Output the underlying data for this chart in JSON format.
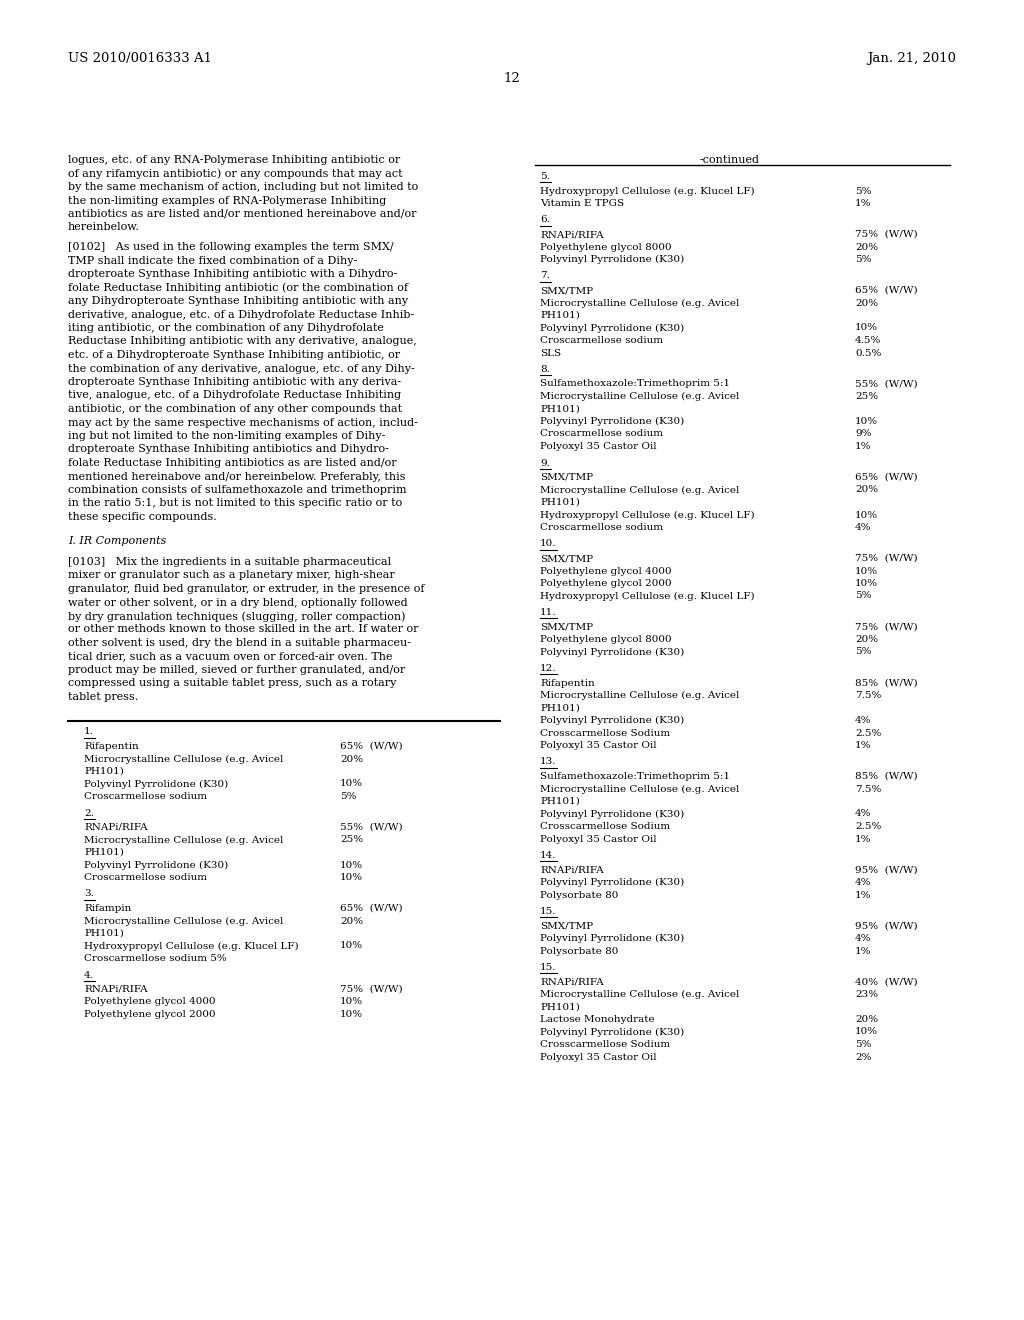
{
  "bg_color": "#ffffff",
  "header_left": "US 2010/0016333 A1",
  "header_right": "Jan. 21, 2010",
  "page_number": "12",
  "left_para1": [
    "logues, etc. of any RNA-Polymerase Inhibiting antibiotic or",
    "of any rifamycin antibiotic) or any compounds that may act",
    "by the same mechanism of action, including but not limited to",
    "the non-limiting examples of RNA-Polymerase Inhibiting",
    "antibiotics as are listed and/or mentioned hereinabove and/or",
    "hereinbelow."
  ],
  "left_para2_bold": "[0102]",
  "left_para2": [
    "[0102]   As used in the following examples the term SMX/",
    "TMP shall indicate the fixed combination of a Dihy-",
    "dropteroate Synthase Inhibiting antibiotic with a Dihydro-",
    "folate Reductase Inhibiting antibiotic (or the combination of",
    "any Dihydropteroate Synthase Inhibiting antibiotic with any",
    "derivative, analogue, etc. of a Dihydrofolate Reductase Inhib-",
    "iting antibiotic, or the combination of any Dihydrofolate",
    "Reductase Inhibiting antibiotic with any derivative, analogue,",
    "etc. of a Dihydropteroate Synthase Inhibiting antibiotic, or",
    "the combination of any derivative, analogue, etc. of any Dihy-",
    "dropteroate Synthase Inhibiting antibiotic with any deriva-",
    "tive, analogue, etc. of a Dihydrofolate Reductase Inhibiting",
    "antibiotic, or the combination of any other compounds that",
    "may act by the same respective mechanisms of action, includ-",
    "ing but not limited to the non-limiting examples of Dihy-",
    "dropteroate Synthase Inhibiting antibiotics and Dihydro-",
    "folate Reductase Inhibiting antibiotics as are listed and/or",
    "mentioned hereinabove and/or hereinbelow. Preferably, this",
    "combination consists of sulfamethoxazole and trimethoprim",
    "in the ratio 5:1, but is not limited to this specific ratio or to",
    "these specific compounds."
  ],
  "left_section_head": "I. IR Components",
  "left_para3": [
    "[0103]   Mix the ingredients in a suitable pharmaceutical",
    "mixer or granulator such as a planetary mixer, high-shear",
    "granulator, fluid bed granulator, or extruder, in the presence of",
    "water or other solvent, or in a dry blend, optionally followed",
    "by dry granulation techniques (slugging, roller compaction)",
    "or other methods known to those skilled in the art. If water or",
    "other solvent is used, dry the blend in a suitable pharmaceu-",
    "tical drier, such as a vacuum oven or forced-air oven. The",
    "product may be milled, sieved or further granulated, and/or",
    "compressed using a suitable tablet press, such as a rotary",
    "tablet press."
  ],
  "right_sections": [
    {
      "number": "5.",
      "items": [
        {
          "name": "Hydroxypropyl Cellulose (e.g. Klucel LF)",
          "value": "5%",
          "wrap": false
        },
        {
          "name": "Vitamin E TPGS",
          "value": "1%",
          "wrap": false
        }
      ]
    },
    {
      "number": "6.",
      "items": [
        {
          "name": "RNAPi/RIFA",
          "value": "75%  (W/W)",
          "wrap": false
        },
        {
          "name": "Polyethylene glycol 8000",
          "value": "20%",
          "wrap": false
        },
        {
          "name": "Polyvinyl Pyrrolidone (K30)",
          "value": "5%",
          "wrap": false
        }
      ]
    },
    {
      "number": "7.",
      "items": [
        {
          "name": "SMX/TMP",
          "value": "65%  (W/W)",
          "wrap": false
        },
        {
          "name": "Microcrystalline Cellulose (e.g. Avicel",
          "value": "20%",
          "wrap": true,
          "wrap2": "PH101)"
        },
        {
          "name": "Polyvinyl Pyrrolidone (K30)",
          "value": "10%",
          "wrap": false
        },
        {
          "name": "Croscarmellose sodium",
          "value": "4.5%",
          "wrap": false
        },
        {
          "name": "SLS",
          "value": "0.5%",
          "wrap": false
        }
      ]
    },
    {
      "number": "8.",
      "items": [
        {
          "name": "Sulfamethoxazole:Trimethoprim 5:1",
          "value": "55%  (W/W)",
          "wrap": false
        },
        {
          "name": "Microcrystalline Cellulose (e.g. Avicel",
          "value": "25%",
          "wrap": true,
          "wrap2": "PH101)"
        },
        {
          "name": "Polyvinyl Pyrrolidone (K30)",
          "value": "10%",
          "wrap": false
        },
        {
          "name": "Croscarmellose sodium",
          "value": "9%",
          "wrap": false
        },
        {
          "name": "Polyoxyl 35 Castor Oil",
          "value": "1%",
          "wrap": false
        }
      ]
    },
    {
      "number": "9.",
      "items": [
        {
          "name": "SMX/TMP",
          "value": "65%  (W/W)",
          "wrap": false
        },
        {
          "name": "Microcrystalline Cellulose (e.g. Avicel",
          "value": "20%",
          "wrap": true,
          "wrap2": "PH101)"
        },
        {
          "name": "Hydroxypropyl Cellulose (e.g. Klucel LF)",
          "value": "10%",
          "wrap": false
        },
        {
          "name": "Croscarmellose sodium",
          "value": "4%",
          "wrap": false
        }
      ]
    },
    {
      "number": "10.",
      "items": [
        {
          "name": "SMX/TMP",
          "value": "75%  (W/W)",
          "wrap": false
        },
        {
          "name": "Polyethylene glycol 4000",
          "value": "10%",
          "wrap": false
        },
        {
          "name": "Polyethylene glycol 2000",
          "value": "10%",
          "wrap": false
        },
        {
          "name": "Hydroxypropyl Cellulose (e.g. Klucel LF)",
          "value": "5%",
          "wrap": false
        }
      ]
    },
    {
      "number": "11.",
      "items": [
        {
          "name": "SMX/TMP",
          "value": "75%  (W/W)",
          "wrap": false
        },
        {
          "name": "Polyethylene glycol 8000",
          "value": "20%",
          "wrap": false
        },
        {
          "name": "Polyvinyl Pyrrolidone (K30)",
          "value": "5%",
          "wrap": false
        }
      ]
    },
    {
      "number": "12.",
      "items": [
        {
          "name": "Rifapentin",
          "value": "85%  (W/W)",
          "wrap": false
        },
        {
          "name": "Microcrystalline Cellulose (e.g. Avicel",
          "value": "7.5%",
          "wrap": true,
          "wrap2": "PH101)"
        },
        {
          "name": "Polyvinyl Pyrrolidone (K30)",
          "value": "4%",
          "wrap": false
        },
        {
          "name": "Crosscarmellose Sodium",
          "value": "2.5%",
          "wrap": false
        },
        {
          "name": "Polyoxyl 35 Castor Oil",
          "value": "1%",
          "wrap": false
        }
      ]
    },
    {
      "number": "13.",
      "items": [
        {
          "name": "Sulfamethoxazole:Trimethoprim 5:1",
          "value": "85%  (W/W)",
          "wrap": false
        },
        {
          "name": "Microcrystalline Cellulose (e.g. Avicel",
          "value": "7.5%",
          "wrap": true,
          "wrap2": "PH101)"
        },
        {
          "name": "Polyvinyl Pyrrolidone (K30)",
          "value": "4%",
          "wrap": false
        },
        {
          "name": "Crosscarmellose Sodium",
          "value": "2.5%",
          "wrap": false
        },
        {
          "name": "Polyoxyl 35 Castor Oil",
          "value": "1%",
          "wrap": false
        }
      ]
    },
    {
      "number": "14.",
      "items": [
        {
          "name": "RNAPi/RIFA",
          "value": "95%  (W/W)",
          "wrap": false
        },
        {
          "name": "Polyvinyl Pyrrolidone (K30)",
          "value": "4%",
          "wrap": false
        },
        {
          "name": "Polysorbate 80",
          "value": "1%",
          "wrap": false
        }
      ]
    },
    {
      "number": "15.",
      "items": [
        {
          "name": "SMX/TMP",
          "value": "95%  (W/W)",
          "wrap": false
        },
        {
          "name": "Polyvinyl Pyrrolidone (K30)",
          "value": "4%",
          "wrap": false
        },
        {
          "name": "Polysorbate 80",
          "value": "1%",
          "wrap": false
        }
      ]
    }
  ],
  "left_bottom_sections": [
    {
      "number": "1.",
      "items": [
        {
          "name": "Rifapentin",
          "value": "65%  (W/W)",
          "wrap": false
        },
        {
          "name": "Microcrystalline Cellulose (e.g. Avicel",
          "value": "20%",
          "wrap": true,
          "wrap2": "PH101)"
        },
        {
          "name": "Polyvinyl Pyrrolidone (K30)",
          "value": "10%",
          "wrap": false
        },
        {
          "name": "Croscarmellose sodium",
          "value": "5%",
          "wrap": false
        }
      ]
    },
    {
      "number": "2.",
      "items": [
        {
          "name": "RNAPi/RIFA",
          "value": "55%  (W/W)",
          "wrap": false
        },
        {
          "name": "Microcrystalline Cellulose (e.g. Avicel",
          "value": "25%",
          "wrap": true,
          "wrap2": "PH101)"
        },
        {
          "name": "Polyvinyl Pyrrolidone (K30)",
          "value": "10%",
          "wrap": false
        },
        {
          "name": "Croscarmellose sodium",
          "value": "10%",
          "wrap": false
        }
      ]
    },
    {
      "number": "3.",
      "items": [
        {
          "name": "Rifampin",
          "value": "65%  (W/W)",
          "wrap": false
        },
        {
          "name": "Microcrystalline Cellulose (e.g. Avicel",
          "value": "20%",
          "wrap": true,
          "wrap2": "PH101)"
        },
        {
          "name": "Hydroxypropyl Cellulose (e.g. Klucel LF)",
          "value": "10%",
          "wrap": false
        },
        {
          "name": "Croscarmellose sodium 5%",
          "value": "",
          "wrap": false
        }
      ]
    },
    {
      "number": "4.",
      "items": [
        {
          "name": "RNAPi/RIFA",
          "value": "75%  (W/W)",
          "wrap": false
        },
        {
          "name": "Polyethylene glycol 4000",
          "value": "10%",
          "wrap": false
        },
        {
          "name": "Polyethylene glycol 2000",
          "value": "10%",
          "wrap": false
        }
      ]
    }
  ],
  "right_bottom_section_number": "15.",
  "right_bottom_items": [
    {
      "name": "RNAPi/RIFA",
      "value": "40%  (W/W)",
      "wrap": false
    },
    {
      "name": "Microcrystalline Cellulose (e.g. Avicel",
      "value": "23%",
      "wrap": true,
      "wrap2": "PH101)"
    },
    {
      "name": "Lactose Monohydrate",
      "value": "20%",
      "wrap": false
    },
    {
      "name": "Polyvinyl Pyrrolidone (K30)",
      "value": "10%",
      "wrap": false
    },
    {
      "name": "Crosscarmellose Sodium",
      "value": "5%",
      "wrap": false
    },
    {
      "name": "Polyoxyl 35 Castor Oil",
      "value": "2%",
      "wrap": false
    }
  ]
}
